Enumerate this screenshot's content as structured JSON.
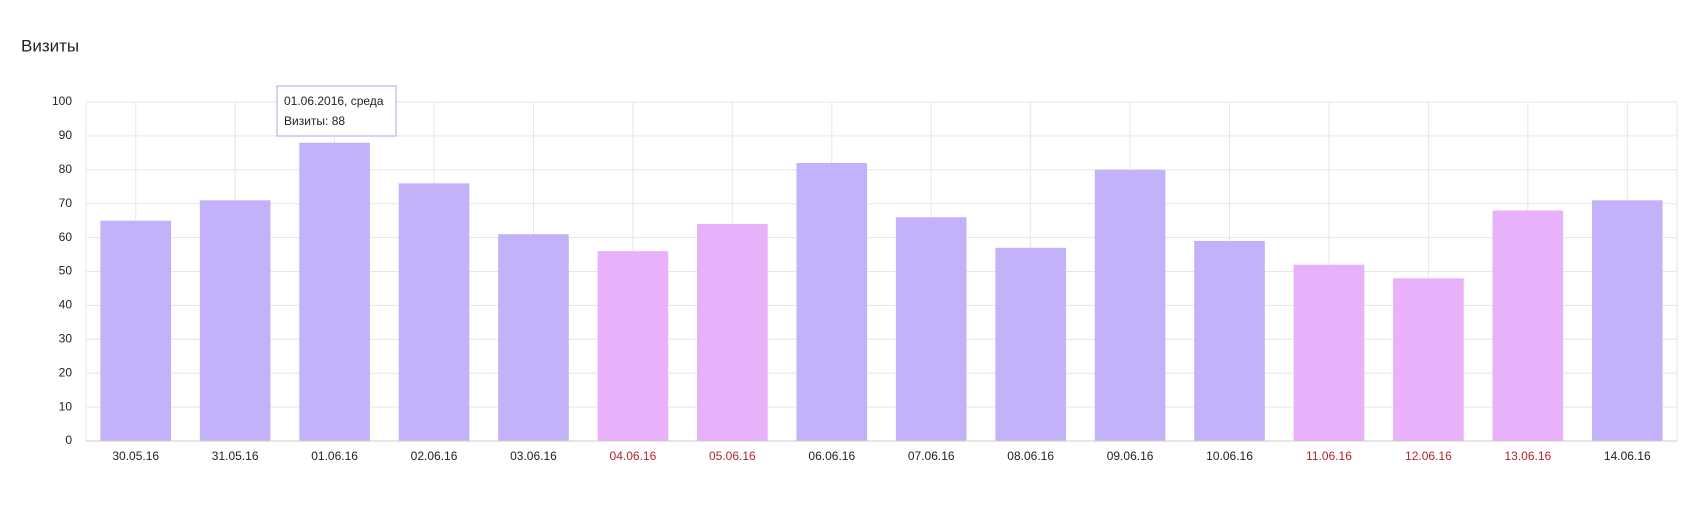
{
  "chart_data": {
    "type": "bar",
    "title": "Визиты",
    "categories": [
      "30.05.16",
      "31.05.16",
      "01.06.16",
      "02.06.16",
      "03.06.16",
      "04.06.16",
      "05.06.16",
      "06.06.16",
      "07.06.16",
      "08.06.16",
      "09.06.16",
      "10.06.16",
      "11.06.16",
      "12.06.16",
      "13.06.16",
      "14.06.16"
    ],
    "values": [
      65,
      71,
      88,
      76,
      61,
      56,
      64,
      82,
      66,
      57,
      80,
      59,
      52,
      48,
      68,
      71
    ],
    "colors": [
      "#c3b1f9",
      "#c3b1f9",
      "#c3b1f9",
      "#c3b1f9",
      "#c3b1f9",
      "#e8b1f9",
      "#e8b1f9",
      "#c3b1f9",
      "#c3b1f9",
      "#c3b1f9",
      "#c3b1f9",
      "#c3b1f9",
      "#e8b1f9",
      "#e8b1f9",
      "#e8b1f9",
      "#c3b1f9"
    ],
    "label_colors": [
      "#222222",
      "#222222",
      "#222222",
      "#222222",
      "#222222",
      "#b0272b",
      "#b0272b",
      "#222222",
      "#222222",
      "#222222",
      "#222222",
      "#222222",
      "#b0272b",
      "#b0272b",
      "#b0272b",
      "#222222"
    ],
    "ylim": [
      0,
      100
    ],
    "yticks": [
      0,
      10,
      20,
      30,
      40,
      50,
      60,
      70,
      80,
      90,
      100
    ],
    "grid": true,
    "tooltip": {
      "title": "01.06.2016, среда",
      "text": "Визиты: 88"
    }
  }
}
